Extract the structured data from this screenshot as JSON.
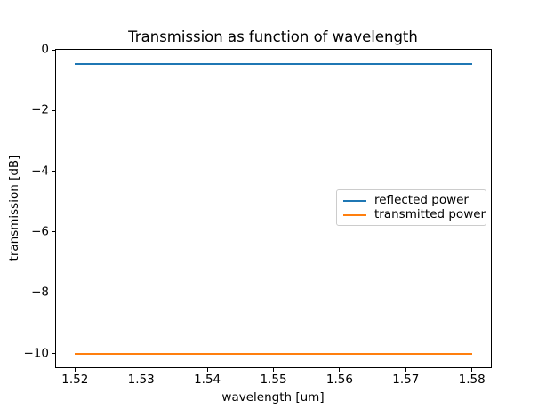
{
  "chart_data": {
    "type": "line",
    "title": "Transmission as function of wavelength",
    "xlabel": "wavelength [um]",
    "ylabel": "transmission [dB]",
    "xlim": [
      1.517,
      1.583
    ],
    "ylim": [
      -10.48,
      0.03
    ],
    "x_ticks": [
      1.52,
      1.53,
      1.54,
      1.55,
      1.56,
      1.57,
      1.58
    ],
    "x_tick_labels": [
      "1.52",
      "1.53",
      "1.54",
      "1.55",
      "1.56",
      "1.57",
      "1.58"
    ],
    "y_ticks": [
      0,
      -2,
      -4,
      -6,
      -8,
      -10
    ],
    "y_tick_labels": [
      "0",
      "−2",
      "−4",
      "−6",
      "−8",
      "−10"
    ],
    "grid": false,
    "legend_position": "center right, inside axes",
    "series": [
      {
        "name": "reflected power",
        "color": "#1f77b4",
        "x": [
          1.52,
          1.58
        ],
        "y": [
          -0.46,
          -0.46
        ]
      },
      {
        "name": "transmitted power",
        "color": "#ff7f0e",
        "x": [
          1.52,
          1.58
        ],
        "y": [
          -10.0,
          -10.0
        ]
      }
    ],
    "colors": {
      "spine": "#000000",
      "legend_border": "#cccccc",
      "background": "#ffffff"
    }
  }
}
